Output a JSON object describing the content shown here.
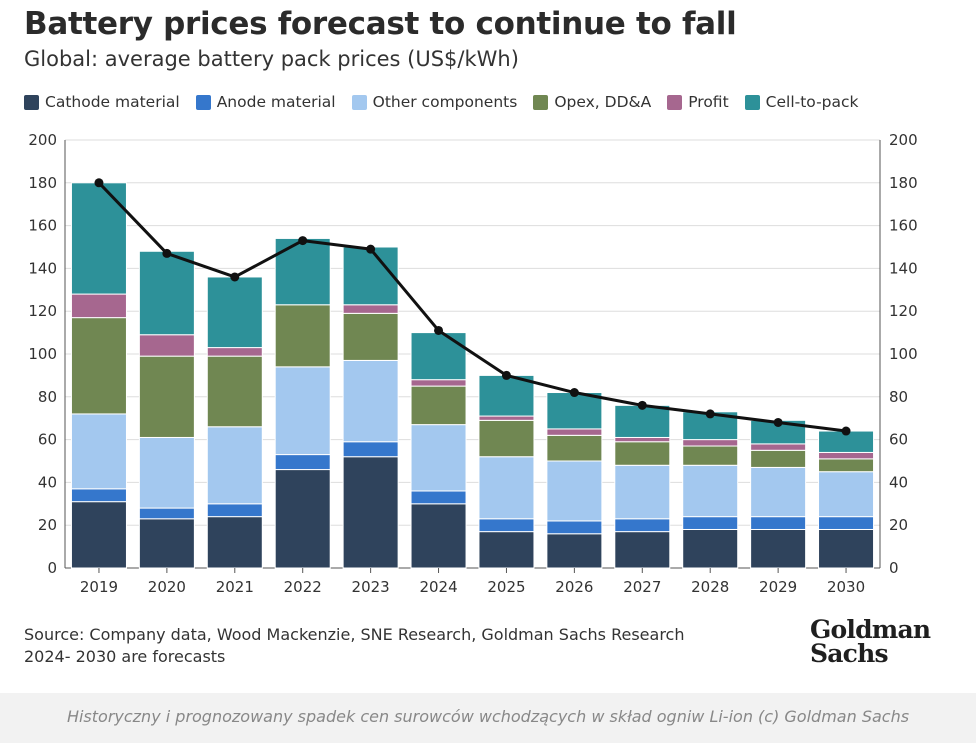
{
  "title": "Battery prices forecast to continue to fall",
  "subtitle": "Global: average battery pack prices (US$/kWh)",
  "source_line1": "Source: Company data, Wood Mackenzie, SNE Research, Goldman Sachs Research",
  "source_line2": "2024- 2030 are forecasts",
  "logo": {
    "line1": "Goldman",
    "line2": "Sachs"
  },
  "caption": "Historyczny i prognozowany spadek cen surowców wchodzących w skład ogniw Li-ion (c) Goldman Sachs",
  "colors": {
    "cathode": "#2f435c",
    "anode": "#3577cc",
    "other": "#a3c8ef",
    "opex": "#708752",
    "profit": "#a6678f",
    "cell_to_pack": "#2d9199",
    "line": "#111111",
    "grid": "#dddddd"
  },
  "chart_data": {
    "type": "bar",
    "stacked": true,
    "categories": [
      "2019",
      "2020",
      "2021",
      "2022",
      "2023",
      "2024",
      "2025",
      "2026",
      "2027",
      "2028",
      "2029",
      "2030"
    ],
    "series": [
      {
        "name": "Cathode material",
        "key": "cathode",
        "values": [
          31,
          23,
          24,
          46,
          52,
          30,
          17,
          16,
          17,
          18,
          18,
          18
        ]
      },
      {
        "name": "Anode material",
        "key": "anode",
        "values": [
          6,
          5,
          6,
          7,
          7,
          6,
          6,
          6,
          6,
          6,
          6,
          6
        ]
      },
      {
        "name": "Other components",
        "key": "other",
        "values": [
          35,
          33,
          36,
          41,
          38,
          31,
          29,
          28,
          25,
          24,
          23,
          21
        ]
      },
      {
        "name": "Opex, DD&A",
        "key": "opex",
        "values": [
          45,
          38,
          33,
          29,
          22,
          18,
          17,
          12,
          11,
          9,
          8,
          6
        ]
      },
      {
        "name": "Profit",
        "key": "profit",
        "values": [
          11,
          10,
          4,
          0,
          4,
          3,
          2,
          3,
          2,
          3,
          3,
          3
        ]
      },
      {
        "name": "Cell-to-pack",
        "key": "cell_to_pack",
        "values": [
          52,
          39,
          33,
          31,
          27,
          22,
          19,
          17,
          15,
          13,
          11,
          10
        ]
      }
    ],
    "line": {
      "values": [
        180,
        147,
        136,
        153,
        149,
        111,
        90,
        82,
        76,
        72,
        68,
        64
      ]
    },
    "ylim": [
      0,
      200
    ],
    "yticks": [
      0,
      20,
      40,
      60,
      80,
      100,
      120,
      140,
      160,
      180,
      200
    ],
    "secondary_axis": true,
    "grid": true,
    "legend_position": "top"
  }
}
